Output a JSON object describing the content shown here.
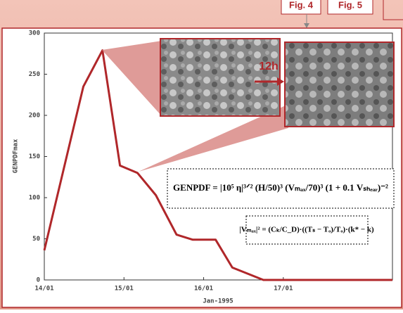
{
  "header": {
    "fig_labels": [
      "Fig. 4",
      "Fig. 5"
    ]
  },
  "chart_data": {
    "type": "line",
    "x": [
      14.0,
      14.49,
      14.73,
      14.95,
      15.17,
      15.4,
      15.66,
      15.86,
      16.15,
      16.36,
      16.75,
      18.37
    ],
    "values": [
      36,
      235,
      279,
      139,
      130,
      103,
      55,
      49,
      49,
      15,
      0,
      0
    ],
    "color": "#b0272a",
    "xlim": [
      14,
      18.37
    ],
    "xticks": [
      {
        "value": 14,
        "label": "14/01"
      },
      {
        "value": 15,
        "label": "15/01"
      },
      {
        "value": 16,
        "label": "16/01"
      },
      {
        "value": 17,
        "label": "17/01"
      }
    ],
    "xlabel": "Jan-1995",
    "ylim": [
      0,
      300
    ],
    "yticks": [
      0,
      50,
      100,
      150,
      200,
      250,
      300
    ],
    "ylabel": "GENPDFmax",
    "grid": false,
    "annotations": {
      "interval": "12h",
      "genpdf_formula": "GENPDF = |10⁵ η|³ᐟ² (H/50)³ (Vₘₐₓ/70)³ (1 + 0.1 Vₛₕₑₐᵣ)⁻²",
      "vmax_formula": "|Vₘₐₓ|² = (Cₖ/C_D)·((Tₛ − Tₒ)/Tₒ)·(k* − k)"
    }
  }
}
